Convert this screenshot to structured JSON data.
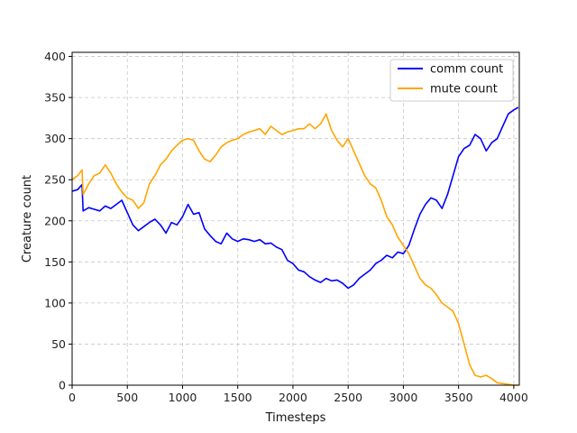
{
  "chart_data": {
    "type": "line",
    "xlabel": "Timesteps",
    "ylabel": "Creature count",
    "xlim": [
      0,
      4050
    ],
    "ylim": [
      0,
      405
    ],
    "xticks": [
      0,
      500,
      1000,
      1500,
      2000,
      2500,
      3000,
      3500,
      4000
    ],
    "yticks": [
      0,
      50,
      100,
      150,
      200,
      250,
      300,
      350,
      400
    ],
    "grid": true,
    "legend_position": "top-right",
    "series": [
      {
        "name": "comm count",
        "color": "#0000ff",
        "x": [
          0,
          50,
          90,
          100,
          150,
          200,
          250,
          300,
          350,
          400,
          450,
          500,
          550,
          600,
          650,
          700,
          750,
          800,
          850,
          900,
          950,
          1000,
          1050,
          1100,
          1150,
          1200,
          1250,
          1300,
          1350,
          1400,
          1450,
          1500,
          1550,
          1600,
          1650,
          1700,
          1750,
          1800,
          1850,
          1900,
          1950,
          2000,
          2050,
          2100,
          2150,
          2200,
          2250,
          2300,
          2350,
          2400,
          2450,
          2500,
          2550,
          2600,
          2650,
          2700,
          2750,
          2800,
          2850,
          2900,
          2950,
          3000,
          3050,
          3100,
          3150,
          3200,
          3250,
          3300,
          3350,
          3400,
          3450,
          3500,
          3550,
          3600,
          3650,
          3700,
          3750,
          3800,
          3850,
          3900,
          3950,
          4000,
          4040
        ],
        "y": [
          236,
          238,
          244,
          212,
          216,
          214,
          212,
          218,
          215,
          220,
          225,
          210,
          195,
          188,
          193,
          198,
          202,
          195,
          185,
          198,
          195,
          205,
          220,
          208,
          210,
          190,
          182,
          175,
          172,
          185,
          178,
          175,
          178,
          177,
          175,
          177,
          172,
          173,
          168,
          165,
          152,
          148,
          140,
          138,
          132,
          128,
          125,
          130,
          127,
          128,
          124,
          118,
          122,
          130,
          135,
          140,
          148,
          152,
          158,
          155,
          162,
          160,
          170,
          190,
          208,
          220,
          228,
          225,
          215,
          232,
          255,
          278,
          288,
          292,
          305,
          300,
          285,
          295,
          300,
          315,
          330,
          335,
          338
        ]
      },
      {
        "name": "mute count",
        "color": "#ffa500",
        "x": [
          0,
          50,
          90,
          100,
          150,
          200,
          250,
          300,
          350,
          400,
          450,
          500,
          550,
          600,
          650,
          700,
          750,
          800,
          850,
          900,
          950,
          1000,
          1050,
          1100,
          1150,
          1200,
          1250,
          1300,
          1350,
          1400,
          1450,
          1500,
          1550,
          1600,
          1650,
          1700,
          1750,
          1800,
          1850,
          1900,
          1950,
          2000,
          2050,
          2100,
          2150,
          2200,
          2250,
          2300,
          2350,
          2400,
          2450,
          2500,
          2550,
          2600,
          2650,
          2700,
          2750,
          2800,
          2850,
          2900,
          2950,
          3000,
          3050,
          3100,
          3150,
          3200,
          3250,
          3300,
          3350,
          3400,
          3450,
          3500,
          3550,
          3600,
          3650,
          3700,
          3750,
          3800,
          3850,
          3900,
          3950,
          4000,
          4040
        ],
        "y": [
          250,
          255,
          262,
          232,
          245,
          255,
          258,
          268,
          258,
          245,
          235,
          228,
          225,
          215,
          222,
          245,
          255,
          268,
          275,
          285,
          292,
          298,
          300,
          298,
          285,
          275,
          272,
          280,
          290,
          295,
          298,
          300,
          305,
          308,
          310,
          312,
          305,
          315,
          310,
          305,
          308,
          310,
          312,
          312,
          318,
          312,
          318,
          330,
          310,
          298,
          290,
          300,
          285,
          270,
          255,
          245,
          240,
          225,
          205,
          195,
          180,
          170,
          160,
          145,
          130,
          122,
          118,
          110,
          100,
          95,
          90,
          75,
          50,
          25,
          12,
          10,
          12,
          8,
          3,
          2,
          1,
          0,
          0
        ]
      }
    ]
  }
}
